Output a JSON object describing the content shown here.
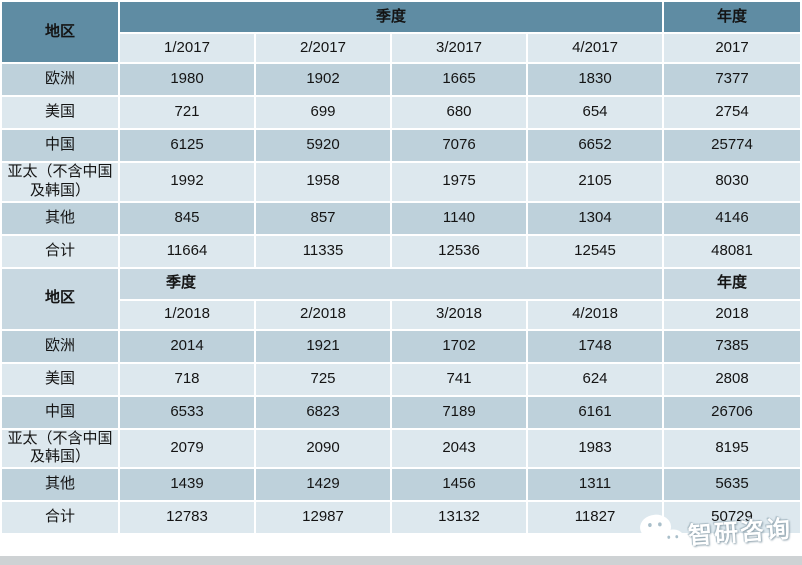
{
  "labels": {
    "region": "地区",
    "quarter_group": "季度",
    "year_group": "年度"
  },
  "watermark": {
    "text": "智研咨询",
    "icon": "wechat-icon"
  },
  "colors": {
    "header_teal": "#5f8ca3",
    "header_medium": "#c8d8e1",
    "row_dark": "#bed1db",
    "row_light": "#dde8ee",
    "bottom_bar": "#ced2d4"
  },
  "chart_data": [
    {
      "type": "table",
      "title": "2017 季度 / 年度",
      "columns": [
        "地区",
        "1/2017",
        "2/2017",
        "3/2017",
        "4/2017",
        "2017"
      ],
      "rows": [
        [
          "欧洲",
          1980,
          1902,
          1665,
          1830,
          7377
        ],
        [
          "美国",
          721,
          699,
          680,
          654,
          2754
        ],
        [
          "中国",
          6125,
          5920,
          7076,
          6652,
          25774
        ],
        [
          "亚太（不含中国及韩国）",
          1992,
          1958,
          1975,
          2105,
          8030
        ],
        [
          "其他",
          845,
          857,
          1140,
          1304,
          4146
        ],
        [
          "合计",
          11664,
          11335,
          12536,
          12545,
          48081
        ]
      ]
    },
    {
      "type": "table",
      "title": "2018 季度 / 年度",
      "columns": [
        "地区",
        "1/2018",
        "2/2018",
        "3/2018",
        "4/2018",
        "2018"
      ],
      "rows": [
        [
          "欧洲",
          2014,
          1921,
          1702,
          1748,
          7385
        ],
        [
          "美国",
          718,
          725,
          741,
          624,
          2808
        ],
        [
          "中国",
          6533,
          6823,
          7189,
          6161,
          26706
        ],
        [
          "亚太（不含中国及韩国）",
          2079,
          2090,
          2043,
          1983,
          8195
        ],
        [
          "其他",
          1439,
          1429,
          1456,
          1311,
          5635
        ],
        [
          "合计",
          12783,
          12987,
          13132,
          11827,
          50729
        ]
      ]
    }
  ]
}
